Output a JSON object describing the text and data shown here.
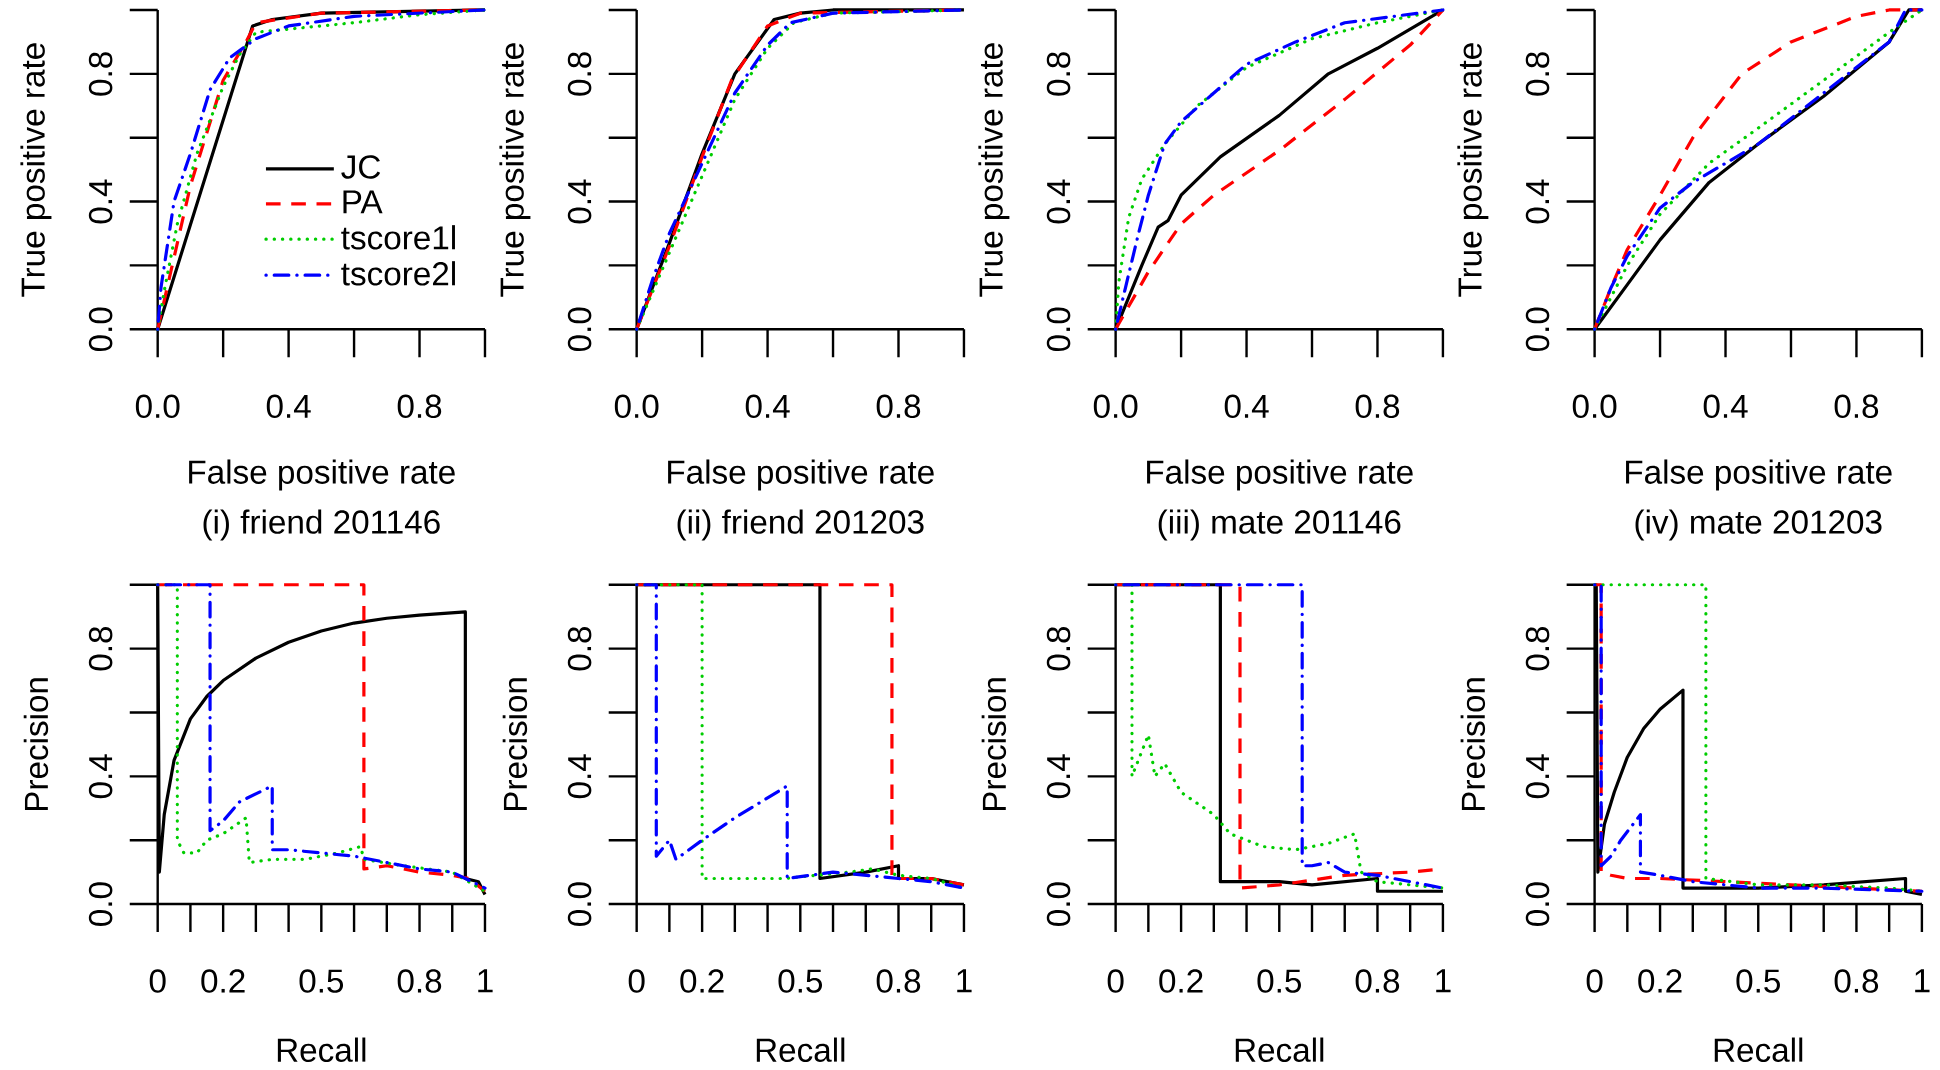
{
  "chart_data": [
    {
      "type": "line",
      "title": "(i) friend 201146",
      "xlabel": "False positive rate",
      "ylabel": "True positive rate",
      "xlim": [
        0,
        1
      ],
      "ylim": [
        0,
        1
      ],
      "xticks": [
        {
          "value": 0,
          "label": "0.0"
        },
        {
          "value": 0.2,
          "label": null
        },
        0.4,
        {
          "value": 0.6,
          "label": null
        },
        0.8,
        {
          "value": 1,
          "label": null
        }
      ],
      "yticks": [
        {
          "value": 0,
          "label": "0.0"
        },
        {
          "value": 0.2,
          "label": null
        },
        {
          "value": 0.4,
          "label": "0.4"
        },
        {
          "value": 0.6,
          "label": null
        },
        {
          "value": 0.8,
          "label": "0.8"
        },
        {
          "value": 1,
          "label": null
        }
      ],
      "legend": "right",
      "series": [
        {
          "name": "JC",
          "color": "#000000",
          "line_style": "solid",
          "x": [
            0,
            0.29,
            0.35,
            0.5,
            1
          ],
          "values": [
            0,
            0.95,
            0.97,
            0.99,
            1
          ]
        },
        {
          "name": "PA",
          "color": "#ff0000",
          "line_style": "dashed",
          "x": [
            0,
            0.1,
            0.2,
            0.27,
            0.3,
            0.5,
            1
          ],
          "values": [
            0,
            0.45,
            0.78,
            0.9,
            0.96,
            0.99,
            1
          ]
        },
        {
          "name": "tscore1l",
          "color": "#00cd00",
          "line_style": "dotted",
          "x": [
            0,
            0.02,
            0.06,
            0.12,
            0.2,
            0.25,
            0.3,
            0.4,
            0.6,
            0.8,
            1
          ],
          "values": [
            0,
            0.12,
            0.33,
            0.55,
            0.76,
            0.86,
            0.93,
            0.94,
            0.96,
            0.985,
            1
          ]
        },
        {
          "name": "tscore2l",
          "color": "#0000ff",
          "line_style": "dashdot",
          "x": [
            0,
            0.01,
            0.05,
            0.1,
            0.16,
            0.22,
            0.3,
            0.4,
            0.6,
            1
          ],
          "values": [
            0,
            0.13,
            0.4,
            0.55,
            0.75,
            0.85,
            0.91,
            0.95,
            0.98,
            1
          ]
        }
      ]
    },
    {
      "type": "line",
      "title": "(ii) friend 201203",
      "xlabel": "False positive rate",
      "ylabel": "True positive rate",
      "xlim": [
        0,
        1
      ],
      "ylim": [
        0,
        1
      ],
      "xticks": [
        {
          "value": 0,
          "label": "0.0"
        },
        {
          "value": 0.2,
          "label": null
        },
        0.4,
        {
          "value": 0.6,
          "label": null
        },
        0.8,
        {
          "value": 1,
          "label": null
        }
      ],
      "yticks": [
        {
          "value": 0,
          "label": "0.0"
        },
        {
          "value": 0.2,
          "label": null
        },
        {
          "value": 0.4,
          "label": "0.4"
        },
        {
          "value": 0.6,
          "label": null
        },
        {
          "value": 0.8,
          "label": "0.8"
        },
        {
          "value": 1,
          "label": null
        }
      ],
      "series": [
        {
          "color": "#000000",
          "line_style": "solid",
          "x": [
            0,
            0.1,
            0.2,
            0.3,
            0.42,
            0.5,
            0.6,
            1
          ],
          "values": [
            0,
            0.27,
            0.55,
            0.8,
            0.97,
            0.99,
            1,
            1
          ]
        },
        {
          "color": "#ff0000",
          "line_style": "dashed",
          "x": [
            0,
            0.1,
            0.2,
            0.29,
            0.4,
            0.5,
            1
          ],
          "values": [
            0,
            0.26,
            0.54,
            0.78,
            0.95,
            0.99,
            1
          ]
        },
        {
          "color": "#00cd00",
          "line_style": "dotted",
          "x": [
            0,
            0.1,
            0.2,
            0.3,
            0.4,
            0.48,
            0.6,
            1
          ],
          "values": [
            0,
            0.24,
            0.48,
            0.72,
            0.88,
            0.96,
            0.99,
            1
          ]
        },
        {
          "color": "#0000ff",
          "line_style": "dashdot",
          "x": [
            0,
            0.05,
            0.1,
            0.2,
            0.3,
            0.4,
            0.47,
            0.6,
            1
          ],
          "values": [
            0,
            0.16,
            0.3,
            0.52,
            0.74,
            0.89,
            0.96,
            0.99,
            1
          ]
        }
      ]
    },
    {
      "type": "line",
      "title": "(iii) mate 201146",
      "xlabel": "False positive rate",
      "ylabel": "True positive rate",
      "xlim": [
        0,
        1
      ],
      "ylim": [
        0,
        1
      ],
      "xticks": [
        {
          "value": 0,
          "label": "0.0"
        },
        {
          "value": 0.2,
          "label": null
        },
        0.4,
        {
          "value": 0.6,
          "label": null
        },
        0.8,
        {
          "value": 1,
          "label": null
        }
      ],
      "yticks": [
        {
          "value": 0,
          "label": "0.0"
        },
        {
          "value": 0.2,
          "label": null
        },
        {
          "value": 0.4,
          "label": "0.4"
        },
        {
          "value": 0.6,
          "label": null
        },
        {
          "value": 0.8,
          "label": "0.8"
        },
        {
          "value": 1,
          "label": null
        }
      ],
      "series": [
        {
          "color": "#000000",
          "line_style": "solid",
          "x": [
            0,
            0.08,
            0.13,
            0.16,
            0.2,
            0.32,
            0.5,
            0.65,
            0.8,
            1
          ],
          "values": [
            0,
            0.2,
            0.32,
            0.34,
            0.42,
            0.54,
            0.67,
            0.8,
            0.88,
            1
          ]
        },
        {
          "color": "#ff0000",
          "line_style": "dashed",
          "x": [
            0,
            0.1,
            0.2,
            0.3,
            0.5,
            0.7,
            0.9,
            1
          ],
          "values": [
            0,
            0.18,
            0.33,
            0.42,
            0.56,
            0.72,
            0.89,
            1
          ]
        },
        {
          "color": "#00cd00",
          "line_style": "dotted",
          "x": [
            0,
            0.01,
            0.04,
            0.08,
            0.15,
            0.25,
            0.4,
            0.6,
            0.8,
            1
          ],
          "values": [
            0,
            0.15,
            0.35,
            0.47,
            0.58,
            0.7,
            0.82,
            0.91,
            0.96,
            1
          ]
        },
        {
          "color": "#0000ff",
          "line_style": "dashdot",
          "x": [
            0,
            0.03,
            0.07,
            0.1,
            0.15,
            0.2,
            0.3,
            0.4,
            0.55,
            0.7,
            0.85,
            1
          ],
          "values": [
            0,
            0.13,
            0.3,
            0.42,
            0.58,
            0.65,
            0.74,
            0.83,
            0.9,
            0.96,
            0.98,
            1
          ]
        }
      ]
    },
    {
      "type": "line",
      "title": "(iv) mate 201203",
      "xlabel": "False positive rate",
      "ylabel": "True positive rate",
      "xlim": [
        0,
        1
      ],
      "ylim": [
        0,
        1
      ],
      "xticks": [
        {
          "value": 0,
          "label": "0.0"
        },
        {
          "value": 0.2,
          "label": null
        },
        0.4,
        {
          "value": 0.6,
          "label": null
        },
        0.8,
        {
          "value": 1,
          "label": null
        }
      ],
      "yticks": [
        {
          "value": 0,
          "label": "0.0"
        },
        {
          "value": 0.2,
          "label": null
        },
        {
          "value": 0.4,
          "label": "0.4"
        },
        {
          "value": 0.6,
          "label": null
        },
        {
          "value": 0.8,
          "label": "0.8"
        },
        {
          "value": 1,
          "label": null
        }
      ],
      "series": [
        {
          "color": "#000000",
          "line_style": "solid",
          "x": [
            0,
            0.1,
            0.2,
            0.35,
            0.5,
            0.7,
            0.9,
            0.96,
            1
          ],
          "values": [
            0,
            0.14,
            0.28,
            0.46,
            0.58,
            0.73,
            0.9,
            1,
            1
          ]
        },
        {
          "color": "#ff0000",
          "line_style": "dashed",
          "x": [
            0,
            0.05,
            0.1,
            0.2,
            0.3,
            0.45,
            0.6,
            0.8,
            0.9,
            1
          ],
          "values": [
            0,
            0.13,
            0.25,
            0.42,
            0.6,
            0.8,
            0.9,
            0.98,
            1,
            1
          ]
        },
        {
          "color": "#00cd00",
          "line_style": "dotted",
          "x": [
            0,
            0.1,
            0.2,
            0.35,
            0.5,
            0.7,
            0.9,
            1
          ],
          "values": [
            0,
            0.2,
            0.36,
            0.52,
            0.63,
            0.78,
            0.93,
            1
          ]
        },
        {
          "color": "#0000ff",
          "line_style": "dashdot",
          "x": [
            0,
            0.05,
            0.1,
            0.2,
            0.3,
            0.5,
            0.7,
            0.9,
            0.95,
            1
          ],
          "values": [
            0,
            0.13,
            0.23,
            0.38,
            0.46,
            0.58,
            0.74,
            0.9,
            1,
            1
          ]
        }
      ]
    },
    {
      "type": "line",
      "xlabel": "Recall",
      "ylabel": "Precision",
      "xlim": [
        0,
        1
      ],
      "ylim": [
        0,
        1
      ],
      "xticks": [
        0,
        {
          "value": 0.1,
          "label": null
        },
        0.2,
        {
          "value": 0.3,
          "label": null
        },
        {
          "value": 0.4,
          "label": null
        },
        0.5,
        {
          "value": 0.6,
          "label": null
        },
        {
          "value": 0.7,
          "label": null
        },
        0.8,
        {
          "value": 0.9,
          "label": null
        },
        1
      ],
      "yticks": [
        {
          "value": 0,
          "label": "0.0"
        },
        {
          "value": 0.2,
          "label": null
        },
        {
          "value": 0.4,
          "label": "0.4"
        },
        {
          "value": 0.6,
          "label": null
        },
        {
          "value": 0.8,
          "label": "0.8"
        },
        {
          "value": 1,
          "label": null
        }
      ],
      "series": [
        {
          "color": "#000000",
          "line_style": "solid",
          "x": [
            0,
            0.005,
            0.02,
            0.05,
            0.1,
            0.15,
            0.2,
            0.3,
            0.4,
            0.5,
            0.6,
            0.7,
            0.8,
            0.94,
            0.94,
            0.98,
            1
          ],
          "values": [
            1,
            0.1,
            0.28,
            0.45,
            0.58,
            0.65,
            0.7,
            0.77,
            0.82,
            0.855,
            0.88,
            0.895,
            0.905,
            0.915,
            0.08,
            0.07,
            0.03
          ]
        },
        {
          "color": "#ff0000",
          "line_style": "dashed",
          "x": [
            0,
            0.63,
            0.63,
            0.7,
            0.8,
            0.9,
            0.95,
            1
          ],
          "values": [
            1,
            1,
            0.11,
            0.12,
            0.1,
            0.09,
            0.08,
            0.04
          ]
        },
        {
          "color": "#00cd00",
          "line_style": "dotted",
          "x": [
            0,
            0.06,
            0.06,
            0.08,
            0.12,
            0.15,
            0.2,
            0.27,
            0.28,
            0.35,
            0.45,
            0.55,
            0.62,
            0.63,
            0.75,
            0.9,
            1
          ],
          "values": [
            1,
            1,
            0.2,
            0.16,
            0.16,
            0.2,
            0.22,
            0.27,
            0.13,
            0.14,
            0.14,
            0.16,
            0.18,
            0.14,
            0.12,
            0.1,
            0.04
          ]
        },
        {
          "color": "#0000ff",
          "line_style": "dashdot",
          "x": [
            0,
            0.16,
            0.16,
            0.2,
            0.25,
            0.35,
            0.35,
            0.4,
            0.5,
            0.6,
            0.7,
            0.8,
            0.9,
            1
          ],
          "values": [
            1,
            1,
            0.23,
            0.26,
            0.32,
            0.37,
            0.17,
            0.17,
            0.16,
            0.15,
            0.13,
            0.11,
            0.1,
            0.05
          ]
        }
      ]
    },
    {
      "type": "line",
      "xlabel": "Recall",
      "ylabel": "Precision",
      "xlim": [
        0,
        1
      ],
      "ylim": [
        0,
        1
      ],
      "xticks": [
        0,
        {
          "value": 0.1,
          "label": null
        },
        0.2,
        {
          "value": 0.3,
          "label": null
        },
        {
          "value": 0.4,
          "label": null
        },
        0.5,
        {
          "value": 0.6,
          "label": null
        },
        {
          "value": 0.7,
          "label": null
        },
        0.8,
        {
          "value": 0.9,
          "label": null
        },
        1
      ],
      "yticks": [
        {
          "value": 0,
          "label": "0.0"
        },
        {
          "value": 0.2,
          "label": null
        },
        {
          "value": 0.4,
          "label": "0.4"
        },
        {
          "value": 0.6,
          "label": null
        },
        {
          "value": 0.8,
          "label": "0.8"
        },
        {
          "value": 1,
          "label": null
        }
      ],
      "series": [
        {
          "color": "#000000",
          "line_style": "solid",
          "x": [
            0,
            0.56,
            0.56,
            0.7,
            0.8,
            0.8,
            0.9,
            1
          ],
          "values": [
            1,
            1,
            0.08,
            0.1,
            0.12,
            0.08,
            0.08,
            0.06
          ]
        },
        {
          "color": "#ff0000",
          "line_style": "dashed",
          "x": [
            0,
            0.78,
            0.78,
            0.9,
            1
          ],
          "values": [
            1,
            1,
            0.08,
            0.08,
            0.06
          ]
        },
        {
          "color": "#00cd00",
          "line_style": "dotted",
          "x": [
            0,
            0.2,
            0.2,
            0.3,
            0.45,
            0.55,
            0.65,
            0.72,
            0.8,
            0.9,
            1
          ],
          "values": [
            1,
            1,
            0.08,
            0.08,
            0.08,
            0.09,
            0.1,
            0.11,
            0.09,
            0.08,
            0.05
          ]
        },
        {
          "color": "#0000ff",
          "line_style": "dashdot",
          "x": [
            0,
            0.06,
            0.06,
            0.1,
            0.12,
            0.2,
            0.3,
            0.46,
            0.46,
            0.6,
            0.7,
            0.8,
            0.9,
            1
          ],
          "values": [
            1,
            1,
            0.15,
            0.2,
            0.14,
            0.2,
            0.27,
            0.37,
            0.08,
            0.1,
            0.09,
            0.08,
            0.07,
            0.05
          ]
        }
      ]
    },
    {
      "type": "line",
      "xlabel": "Recall",
      "ylabel": "Precision",
      "xlim": [
        0,
        1
      ],
      "ylim": [
        0,
        1
      ],
      "xticks": [
        0,
        {
          "value": 0.1,
          "label": null
        },
        0.2,
        {
          "value": 0.3,
          "label": null
        },
        {
          "value": 0.4,
          "label": null
        },
        0.5,
        {
          "value": 0.6,
          "label": null
        },
        {
          "value": 0.7,
          "label": null
        },
        0.8,
        {
          "value": 0.9,
          "label": null
        },
        1
      ],
      "yticks": [
        {
          "value": 0,
          "label": "0.0"
        },
        {
          "value": 0.2,
          "label": null
        },
        {
          "value": 0.4,
          "label": "0.4"
        },
        {
          "value": 0.6,
          "label": null
        },
        {
          "value": 0.8,
          "label": "0.8"
        },
        {
          "value": 1,
          "label": null
        }
      ],
      "series": [
        {
          "color": "#000000",
          "line_style": "solid",
          "x": [
            0,
            0.32,
            0.32,
            0.4,
            0.5,
            0.6,
            0.8,
            0.8,
            1
          ],
          "values": [
            1,
            1,
            0.07,
            0.07,
            0.07,
            0.06,
            0.08,
            0.04,
            0.04
          ]
        },
        {
          "color": "#ff0000",
          "line_style": "dashed",
          "x": [
            0,
            0.38,
            0.38,
            0.5,
            0.7,
            0.9,
            1
          ],
          "values": [
            1,
            1,
            0.05,
            0.06,
            0.09,
            0.1,
            0.11
          ]
        },
        {
          "color": "#00cd00",
          "line_style": "dotted",
          "x": [
            0,
            0.05,
            0.05,
            0.1,
            0.12,
            0.15,
            0.2,
            0.3,
            0.35,
            0.45,
            0.55,
            0.65,
            0.73,
            0.75,
            0.8,
            1
          ],
          "values": [
            1,
            1,
            0.4,
            0.53,
            0.4,
            0.44,
            0.35,
            0.28,
            0.22,
            0.18,
            0.17,
            0.19,
            0.22,
            0.1,
            0.07,
            0.05
          ]
        },
        {
          "color": "#0000ff",
          "line_style": "dashdot",
          "x": [
            0,
            0.57,
            0.57,
            0.6,
            0.65,
            0.7,
            0.8,
            0.9,
            1
          ],
          "values": [
            1,
            1,
            0.12,
            0.12,
            0.13,
            0.1,
            0.09,
            0.07,
            0.05
          ]
        }
      ]
    },
    {
      "type": "line",
      "xlabel": "Recall",
      "ylabel": "Precision",
      "xlim": [
        0,
        1
      ],
      "ylim": [
        0,
        1
      ],
      "xticks": [
        0,
        {
          "value": 0.1,
          "label": null
        },
        0.2,
        {
          "value": 0.3,
          "label": null
        },
        {
          "value": 0.4,
          "label": null
        },
        0.5,
        {
          "value": 0.6,
          "label": null
        },
        {
          "value": 0.7,
          "label": null
        },
        0.8,
        {
          "value": 0.9,
          "label": null
        },
        1
      ],
      "yticks": [
        {
          "value": 0,
          "label": "0.0"
        },
        {
          "value": 0.2,
          "label": null
        },
        {
          "value": 0.4,
          "label": "0.4"
        },
        {
          "value": 0.6,
          "label": null
        },
        {
          "value": 0.8,
          "label": "0.8"
        },
        {
          "value": 1,
          "label": null
        }
      ],
      "series": [
        {
          "color": "#000000",
          "line_style": "solid",
          "x": [
            0,
            0.005,
            0.01,
            0.03,
            0.06,
            0.1,
            0.15,
            0.2,
            0.27,
            0.27,
            0.4,
            0.5,
            0.7,
            0.95,
            0.95,
            1
          ],
          "values": [
            1,
            1,
            0.1,
            0.25,
            0.35,
            0.46,
            0.55,
            0.61,
            0.67,
            0.05,
            0.05,
            0.05,
            0.06,
            0.08,
            0.04,
            0.03
          ]
        },
        {
          "color": "#ff0000",
          "line_style": "dashed",
          "x": [
            0,
            0.02,
            0.02,
            0.05,
            0.1,
            0.2,
            0.4,
            0.6,
            0.8,
            1
          ],
          "values": [
            1,
            1,
            0.1,
            0.09,
            0.08,
            0.08,
            0.07,
            0.06,
            0.05,
            0.04
          ]
        },
        {
          "color": "#00cd00",
          "line_style": "dotted",
          "x": [
            0,
            0.34,
            0.34,
            0.5,
            0.7,
            0.9,
            1
          ],
          "values": [
            1,
            1,
            0.08,
            0.06,
            0.06,
            0.05,
            0.04
          ]
        },
        {
          "color": "#0000ff",
          "line_style": "dashdot",
          "x": [
            0,
            0.02,
            0.02,
            0.05,
            0.08,
            0.14,
            0.14,
            0.2,
            0.3,
            0.5,
            0.7,
            1
          ],
          "values": [
            1,
            1,
            0.12,
            0.15,
            0.2,
            0.28,
            0.1,
            0.09,
            0.07,
            0.05,
            0.05,
            0.04
          ]
        }
      ]
    }
  ]
}
